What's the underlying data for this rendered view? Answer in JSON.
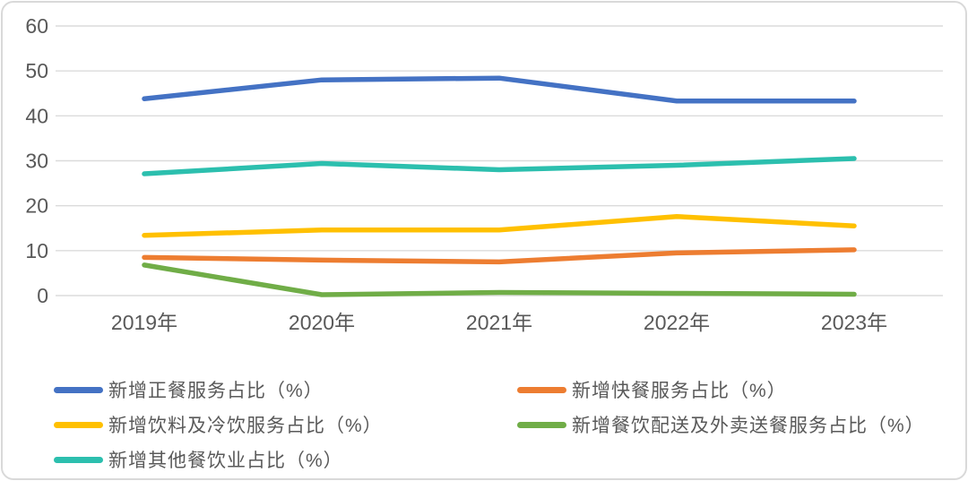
{
  "chart_data": {
    "type": "line",
    "title": "",
    "xlabel": "",
    "ylabel": "",
    "categories": [
      "2019年",
      "2020年",
      "2021年",
      "2022年",
      "2023年"
    ],
    "series": [
      {
        "name": "新增正餐服务占比（%）",
        "color": "#4472C4",
        "values": [
          43.8,
          48.0,
          48.4,
          43.3,
          43.3
        ]
      },
      {
        "name": "新增快餐服务占比（%）",
        "color": "#ED7D31",
        "values": [
          8.5,
          7.9,
          7.5,
          9.5,
          10.2
        ]
      },
      {
        "name": "新增饮料及冷饮服务占比（%）",
        "color": "#FFC000",
        "values": [
          13.4,
          14.6,
          14.6,
          17.6,
          15.5
        ]
      },
      {
        "name": "新增餐饮配送及外卖送餐服务占比（%）",
        "color": "#70AD47",
        "values": [
          6.8,
          0.2,
          0.7,
          0.5,
          0.3
        ]
      },
      {
        "name": "新增其他餐饮业占比（%）",
        "color": "#2CBFAE",
        "values": [
          27.1,
          29.4,
          28.0,
          29.0,
          30.5
        ]
      }
    ],
    "y_ticks": [
      0,
      10,
      20,
      30,
      40,
      50,
      60
    ],
    "ylim": [
      0,
      60
    ],
    "grid": true,
    "legend_position": "bottom",
    "legend_columns": 2
  },
  "style_colors": {
    "axis_text": "#595959",
    "gridline": "#dbdbdb",
    "frame_border": "#d9d9d9",
    "background": "#ffffff"
  }
}
